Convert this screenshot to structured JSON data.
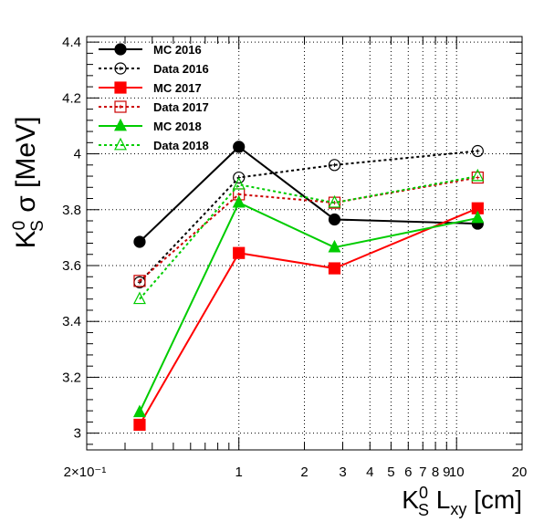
{
  "chart_data": {
    "type": "line",
    "title": "",
    "ylabel": "K_S^0 σ [MeV]",
    "xlabel": "K_S^0 L_xy [cm]",
    "ylabel_parts": {
      "K": "K",
      "sup": "0",
      "sub": "S",
      "rest": " σ [MeV]"
    },
    "xlabel_parts": {
      "K": "K",
      "sup": "0",
      "sub": "S",
      "L": " L",
      "lsub": "xy",
      "rest": " [cm]"
    },
    "x_scale": "log",
    "xlim": [
      0.2,
      20
    ],
    "ylim": [
      2.94,
      4.42
    ],
    "grid": true,
    "legend_position": "top-left",
    "x_ticks": [
      {
        "value": 0.2,
        "label": "2×10⁻¹"
      },
      {
        "value": 1,
        "label": "1"
      },
      {
        "value": 2,
        "label": "2"
      },
      {
        "value": 3,
        "label": "3"
      },
      {
        "value": 4,
        "label": "4"
      },
      {
        "value": 5,
        "label": "5"
      },
      {
        "value": 6,
        "label": "6"
      },
      {
        "value": 7,
        "label": "7"
      },
      {
        "value": 8,
        "label": "8"
      },
      {
        "value": 9,
        "label": "9"
      },
      {
        "value": 10,
        "label": "10"
      },
      {
        "value": 20,
        "label": "20"
      }
    ],
    "y_ticks": [
      {
        "value": 3,
        "label": "3"
      },
      {
        "value": 3.2,
        "label": "3.2"
      },
      {
        "value": 3.4,
        "label": "3.4"
      },
      {
        "value": 3.6,
        "label": "3.6"
      },
      {
        "value": 3.8,
        "label": "3.8"
      },
      {
        "value": 4,
        "label": "4"
      },
      {
        "value": 4.2,
        "label": "4.2"
      },
      {
        "value": 4.4,
        "label": "4.4"
      }
    ],
    "x": [
      0.35,
      1.0,
      2.75,
      12.5
    ],
    "series": [
      {
        "name": "MC 2016",
        "values": [
          3.685,
          4.025,
          3.765,
          3.75
        ],
        "color": "#000000",
        "marker": "circle",
        "filled": true,
        "dashed": false
      },
      {
        "name": "Data 2016",
        "values": [
          3.54,
          3.915,
          3.96,
          4.01
        ],
        "color": "#000000",
        "marker": "circle",
        "filled": false,
        "dashed": true
      },
      {
        "name": "MC 2017",
        "values": [
          3.03,
          3.645,
          3.59,
          3.805
        ],
        "color": "#ff0000",
        "marker": "square",
        "filled": true,
        "dashed": false
      },
      {
        "name": "Data 2017",
        "values": [
          3.545,
          3.855,
          3.825,
          3.915
        ],
        "color": "#cc0000",
        "marker": "square",
        "filled": false,
        "dashed": true
      },
      {
        "name": "MC 2018",
        "values": [
          3.075,
          3.825,
          3.665,
          3.77
        ],
        "color": "#00cc00",
        "marker": "triangle",
        "filled": true,
        "dashed": false
      },
      {
        "name": "Data 2018",
        "values": [
          3.48,
          3.89,
          3.825,
          3.92
        ],
        "color": "#00cc00",
        "marker": "triangle",
        "filled": false,
        "dashed": true
      }
    ]
  }
}
